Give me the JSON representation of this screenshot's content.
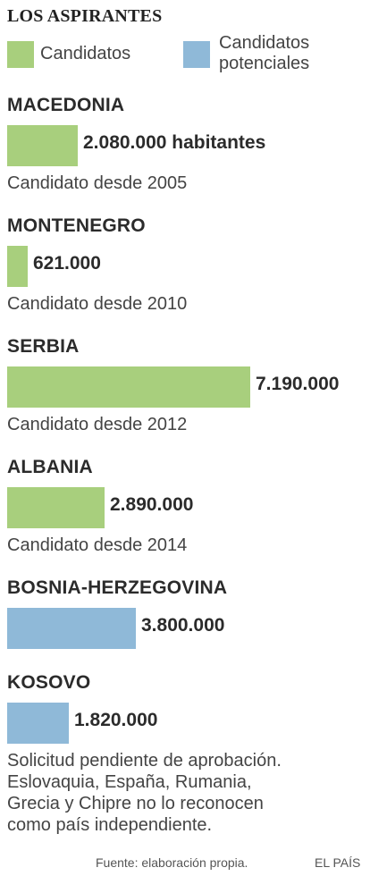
{
  "title": "LOS ASPIRANTES",
  "colors": {
    "candidate": "#a8cf7d",
    "potential": "#8fb9d8"
  },
  "legend": {
    "candidate_label": "Candidatos",
    "potential_label_line1": "Candidatos",
    "potential_label_line2": "potenciales"
  },
  "chart_data": {
    "type": "bar",
    "title": "LOS ASPIRANTES",
    "unit": "habitantes",
    "categories": [
      "MACEDONIA",
      "MONTENEGRO",
      "SERBIA",
      "ALBANIA",
      "BOSNIA-HERZEGOVINA",
      "KOSOVO"
    ],
    "values": [
      2080000,
      621000,
      7190000,
      2890000,
      3800000,
      1820000
    ],
    "groups": [
      "candidate",
      "candidate",
      "candidate",
      "candidate",
      "potential",
      "potential"
    ],
    "value_labels": [
      "2.080.000 habitantes",
      "621.000",
      "7.190.000",
      "2.890.000",
      "3.800.000",
      "1.820.000"
    ],
    "notes": [
      [
        "Candidato desde 2005"
      ],
      [
        "Candidato desde 2010"
      ],
      [
        "Candidato desde 2012"
      ],
      [
        "Candidato desde 2014"
      ],
      [],
      [
        "Solicitud pendiente de aprobación.",
        "Eslovaquia, España, Rumania,",
        "Grecia y Chipre no lo reconocen",
        "como país independiente."
      ]
    ]
  },
  "footer": {
    "source": "Fuente: elaboración propia.",
    "brand": "EL PAÍS"
  }
}
